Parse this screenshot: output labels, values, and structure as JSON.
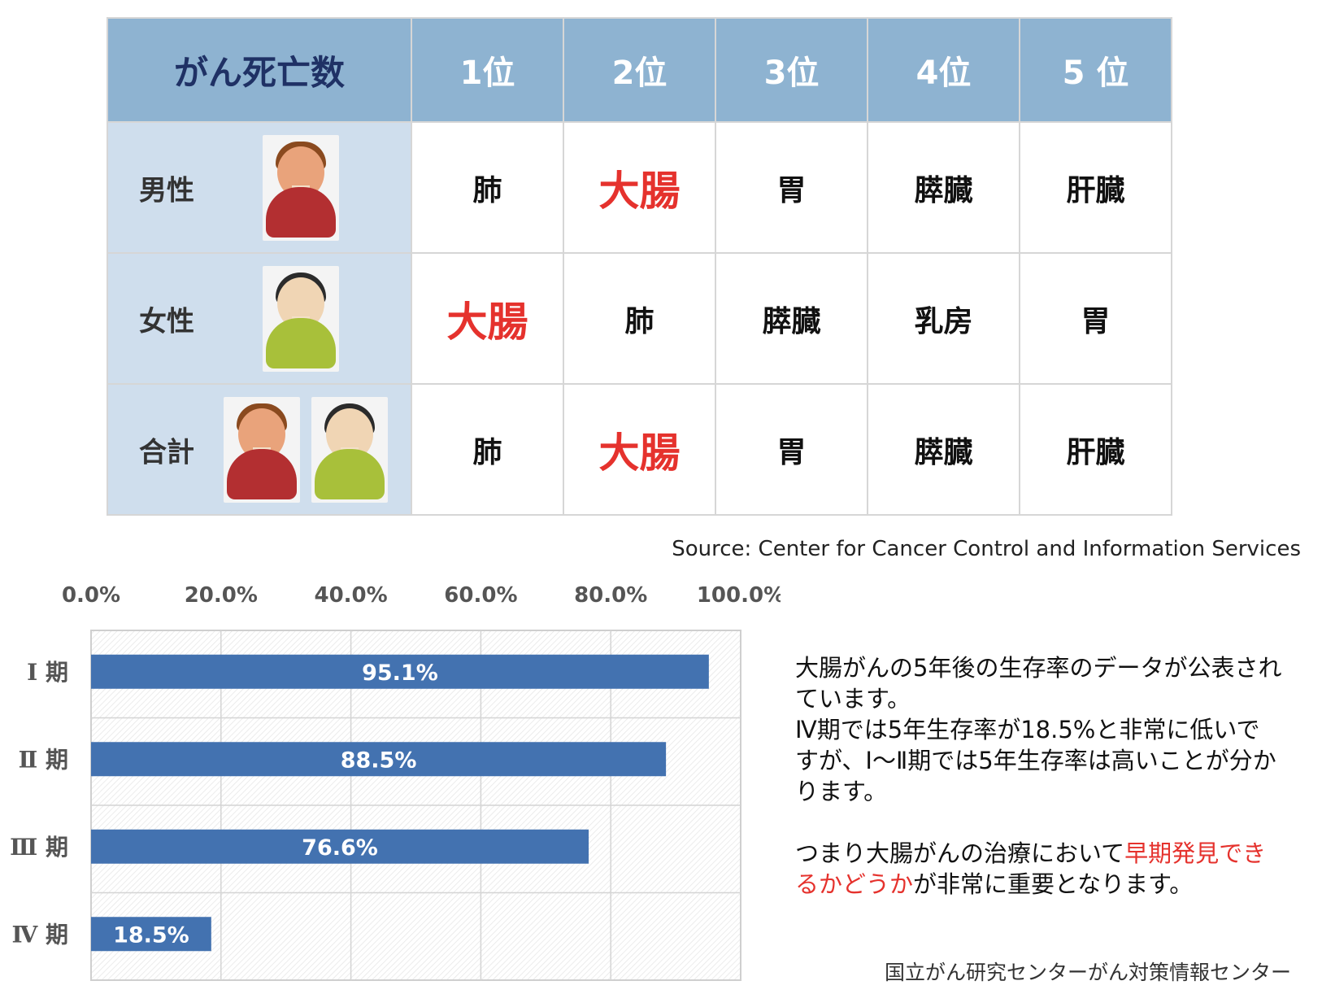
{
  "table": {
    "title": "がん死亡数",
    "rank_headers": [
      "1位",
      "2位",
      "3位",
      "4位",
      "5 位"
    ],
    "rows": [
      {
        "label": "男性",
        "avatars": [
          "male-avatar-icon"
        ],
        "cells": [
          "肺",
          "大腸",
          "胃",
          "膵臓",
          "肝臓"
        ],
        "highlight": [
          false,
          true,
          false,
          false,
          false
        ]
      },
      {
        "label": "女性",
        "avatars": [
          "female-avatar-icon"
        ],
        "cells": [
          "大腸",
          "肺",
          "膵臓",
          "乳房",
          "胃"
        ],
        "highlight": [
          true,
          false,
          false,
          false,
          false
        ]
      },
      {
        "label": "合計",
        "avatars": [
          "male-avatar-icon",
          "female-avatar-icon"
        ],
        "cells": [
          "肺",
          "大腸",
          "胃",
          "膵臓",
          "肝臓"
        ],
        "highlight": [
          false,
          true,
          false,
          false,
          false
        ]
      }
    ],
    "colors": {
      "header_bg": "#8eb3d1",
      "label_bg": "#cfdeed",
      "title_text": "#1f3165",
      "highlight": "#e5322d"
    }
  },
  "source": "Source: Center for Cancer Control and Information Services",
  "chart_data": {
    "type": "bar",
    "orientation": "horizontal",
    "categories": [
      "Ⅰ 期",
      "Ⅱ 期",
      "Ⅲ 期",
      "Ⅳ 期"
    ],
    "values": [
      95.1,
      88.5,
      76.6,
      18.5
    ],
    "value_labels": [
      "95.1%",
      "88.5%",
      "76.6%",
      "18.5%"
    ],
    "x_ticks": [
      "0.0%",
      "20.0%",
      "40.0%",
      "60.0%",
      "80.0%",
      "100.0%"
    ],
    "xlim": [
      0,
      100
    ],
    "x_axis_position": "top",
    "grid": true,
    "bar_color": "#4372b0"
  },
  "note": {
    "para1": "大腸がんの5年後の生存率のデータが公表されています。",
    "para2": "Ⅳ期では5年生存率が18.5%と非常に低いですが、Ⅰ～Ⅱ期では5年生存率は高いことが分かります。",
    "para3_before": "つまり大腸がんの治療において",
    "para3_highlight": "早期発見できるかどうか",
    "para3_after": "が非常に重要となります。"
  },
  "credit": "国立がん研究センターがん対策情報センター"
}
